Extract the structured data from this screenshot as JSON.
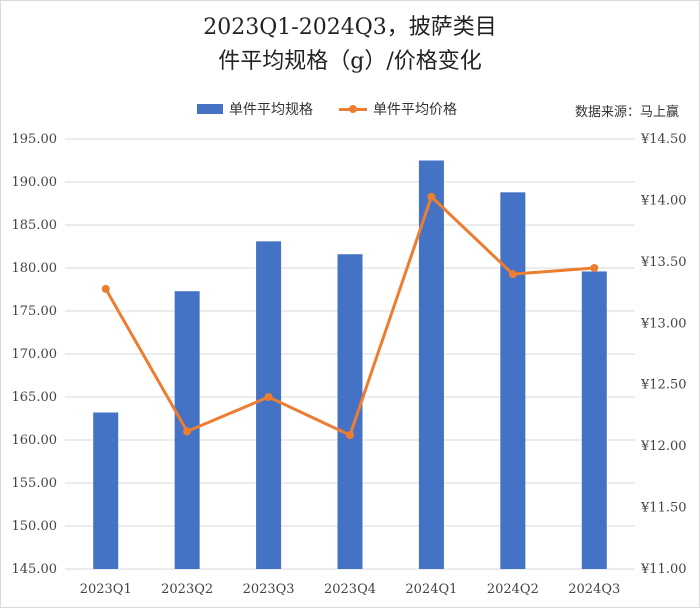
{
  "title_line1": "2023Q1-2024Q3，披萨类目",
  "title_line2": "件平均规格（g）/价格变化",
  "source": "数据来源：马上赢",
  "colors": {
    "bar": "#4472c4",
    "line": "#ed7d31",
    "grid": "#d9d9d9"
  },
  "chart_data": {
    "type": "bar",
    "categories": [
      "2023Q1",
      "2023Q2",
      "2023Q3",
      "2023Q4",
      "2024Q1",
      "2024Q2",
      "2024Q3"
    ],
    "series": [
      {
        "name": "单件平均规格",
        "type": "bar",
        "axis": "left",
        "values": [
          163.2,
          177.3,
          183.1,
          181.6,
          192.5,
          188.8,
          179.6
        ]
      },
      {
        "name": "单件平均价格",
        "type": "line",
        "axis": "right",
        "values": [
          13.28,
          12.12,
          12.4,
          12.09,
          14.03,
          13.4,
          13.45
        ]
      }
    ],
    "y_left": {
      "min": 145,
      "max": 195,
      "step": 5,
      "tick_labels": [
        "145.00",
        "150.00",
        "155.00",
        "160.00",
        "165.00",
        "170.00",
        "175.00",
        "180.00",
        "185.00",
        "190.00",
        "195.00"
      ]
    },
    "y_right": {
      "min": 11,
      "max": 14.5,
      "step": 0.5,
      "tick_labels": [
        "¥11.00",
        "¥11.50",
        "¥12.00",
        "¥12.50",
        "¥13.00",
        "¥13.50",
        "¥14.00",
        "¥14.50"
      ]
    },
    "grid": true,
    "legend_position": "top"
  }
}
